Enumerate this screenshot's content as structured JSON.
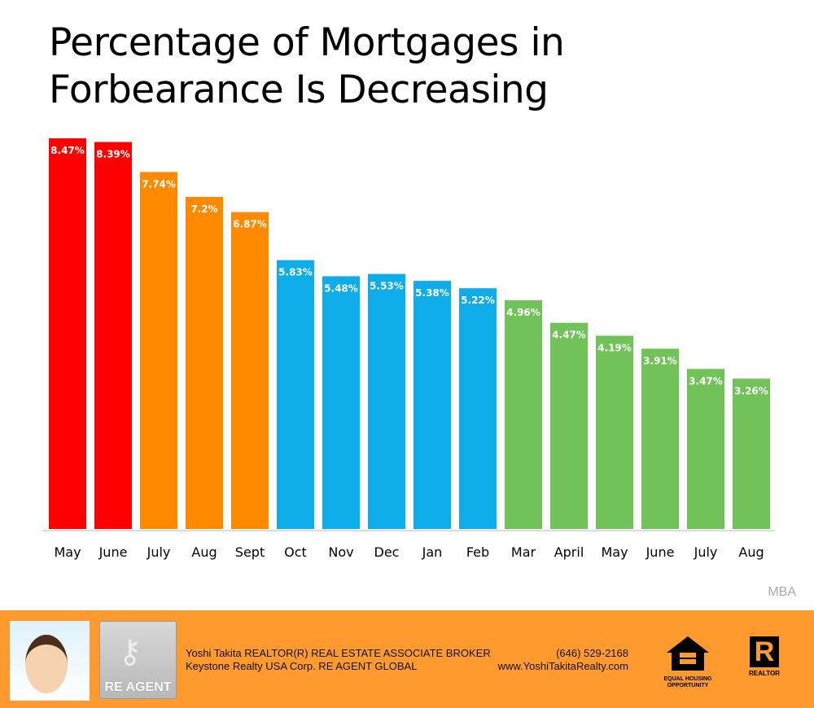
{
  "chart_data": {
    "type": "bar",
    "title": "Percentage of Mortgages in Forbearance Is Decreasing",
    "title_lines": [
      "Percentage of Mortgages in",
      "Forbearance Is Decreasing"
    ],
    "categories": [
      "May",
      "June",
      "July",
      "Aug",
      "Sept",
      "Oct",
      "Nov",
      "Dec",
      "Jan",
      "Feb",
      "Mar",
      "April",
      "May",
      "June",
      "July",
      "Aug"
    ],
    "values": [
      8.47,
      8.39,
      7.74,
      7.2,
      6.87,
      5.83,
      5.48,
      5.53,
      5.38,
      5.22,
      4.96,
      4.47,
      4.19,
      3.91,
      3.47,
      3.26
    ],
    "labels": [
      "8.47%",
      "8.39%",
      "7.74%",
      "7.2%",
      "6.87%",
      "5.83%",
      "5.48%",
      "5.53%",
      "5.38%",
      "5.22%",
      "4.96%",
      "4.47%",
      "4.19%",
      "3.91%",
      "3.47%",
      "3.26%"
    ],
    "colors": [
      "#FF0000",
      "#FF0000",
      "#FF8A00",
      "#FF8A00",
      "#FF8A00",
      "#0EADE9",
      "#0EADE9",
      "#0EADE9",
      "#0EADE9",
      "#0EADE9",
      "#72C25A",
      "#72C25A",
      "#72C25A",
      "#72C25A",
      "#72C25A",
      "#72C25A"
    ],
    "xlabel": "",
    "ylabel": "",
    "ylim": [
      0,
      8.47
    ],
    "grid": false,
    "source": "MBA"
  },
  "footer": {
    "line1": "Yoshi Takita REALTOR(R) REAL ESTATE ASSOCIATE BROKER",
    "line2": "Keystone Realty USA Corp.  RE AGENT GLOBAL",
    "phone": "(646) 529-2168",
    "website": "www.YoshiTakitaRealty.com",
    "reagent_logo": "RE AGENT",
    "eho_logo": "EQUAL HOUSING OPPORTUNITY",
    "realtor_logo": "REALTOR",
    "bg": "#FE9A2E"
  }
}
